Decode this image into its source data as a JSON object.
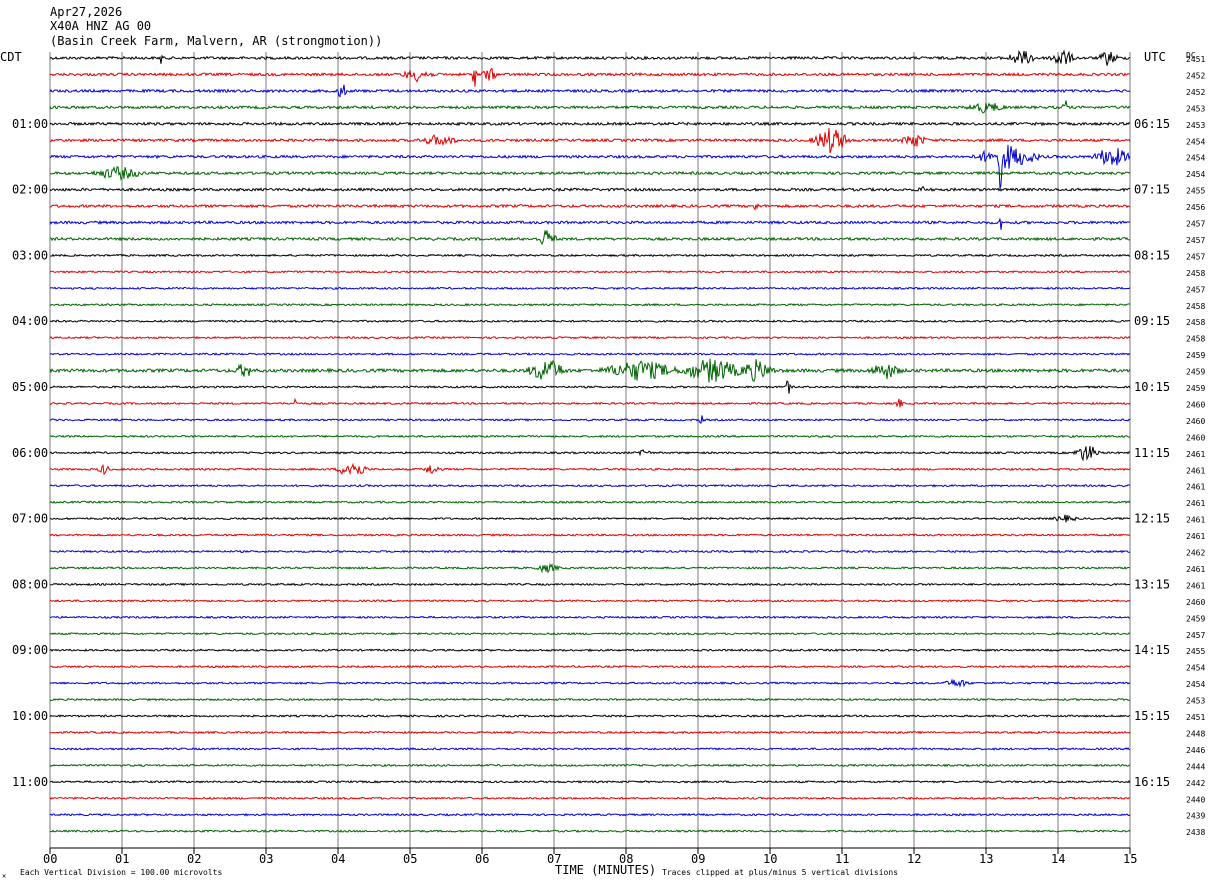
{
  "header": {
    "date": "Apr27,2026",
    "station": "X40A HNZ AG 00",
    "location": "(Basin Creek Farm, Malvern, AR (strongmotion))"
  },
  "labels": {
    "left_zone": "CDT",
    "right_zone": "UTC",
    "dc": "DC",
    "corner": "✕"
  },
  "footer": {
    "xlabel": "TIME (MINUTES)",
    "scale_note": "Each Vertical Division = 100.00 microvolts",
    "clip_note": "Traces clipped at plus/minus 5 vertical divisions"
  },
  "chart_data": {
    "type": "line",
    "xlim": [
      0,
      15
    ],
    "x_ticks": [
      "00",
      "01",
      "02",
      "03",
      "04",
      "05",
      "06",
      "07",
      "08",
      "09",
      "10",
      "11",
      "12",
      "13",
      "14",
      "15"
    ],
    "trace_count": 48,
    "trace_colors": [
      "#000000",
      "#e00000",
      "#0000d0",
      "#006400"
    ],
    "left_time_labels": [
      {
        "trace": 4,
        "label": "01:00"
      },
      {
        "trace": 8,
        "label": "02:00"
      },
      {
        "trace": 12,
        "label": "03:00"
      },
      {
        "trace": 16,
        "label": "04:00"
      },
      {
        "trace": 20,
        "label": "05:00"
      },
      {
        "trace": 24,
        "label": "06:00"
      },
      {
        "trace": 28,
        "label": "07:00"
      },
      {
        "trace": 32,
        "label": "08:00"
      },
      {
        "trace": 36,
        "label": "09:00"
      },
      {
        "trace": 40,
        "label": "10:00"
      },
      {
        "trace": 44,
        "label": "11:00"
      }
    ],
    "right_time_labels": [
      {
        "trace": 4,
        "label": "06:15"
      },
      {
        "trace": 8,
        "label": "07:15"
      },
      {
        "trace": 12,
        "label": "08:15"
      },
      {
        "trace": 16,
        "label": "09:15"
      },
      {
        "trace": 20,
        "label": "10:15"
      },
      {
        "trace": 24,
        "label": "11:15"
      },
      {
        "trace": 28,
        "label": "12:15"
      },
      {
        "trace": 32,
        "label": "13:15"
      },
      {
        "trace": 36,
        "label": "14:15"
      },
      {
        "trace": 40,
        "label": "15:15"
      },
      {
        "trace": 44,
        "label": "16:15"
      }
    ],
    "dc_values": [
      2451,
      2452,
      2452,
      2453,
      2453,
      2454,
      2454,
      2454,
      2455,
      2456,
      2457,
      2457,
      2457,
      2458,
      2457,
      2458,
      2458,
      2458,
      2459,
      2459,
      2459,
      2460,
      2460,
      2460,
      2461,
      2461,
      2461,
      2461,
      2461,
      2461,
      2462,
      2461,
      2461,
      2460,
      2459,
      2457,
      2455,
      2454,
      2454,
      2453,
      2451,
      2448,
      2446,
      2444,
      2442,
      2440,
      2439,
      2438
    ],
    "events": [
      {
        "trace": 0,
        "minute": 1.55,
        "amp": 14,
        "width": 0.02
      },
      {
        "trace": 0,
        "minute": 13.5,
        "amp": 7,
        "width": 0.25
      },
      {
        "trace": 0,
        "minute": 14.05,
        "amp": 9,
        "width": 0.2
      },
      {
        "trace": 0,
        "minute": 14.7,
        "amp": 8,
        "width": 0.15
      },
      {
        "trace": 1,
        "minute": 5.1,
        "amp": 6,
        "width": 0.25
      },
      {
        "trace": 1,
        "minute": 5.9,
        "amp": 13,
        "width": 0.05
      },
      {
        "trace": 1,
        "minute": 6.1,
        "amp": 7,
        "width": 0.12
      },
      {
        "trace": 2,
        "minute": 4.05,
        "amp": 9,
        "width": 0.08
      },
      {
        "trace": 3,
        "minute": 14.1,
        "amp": 8,
        "width": 0.05
      },
      {
        "trace": 3,
        "minute": 13.0,
        "amp": 5,
        "width": 0.3
      },
      {
        "trace": 5,
        "minute": 5.4,
        "amp": 5,
        "width": 0.3
      },
      {
        "trace": 5,
        "minute": 10.85,
        "amp": 13,
        "width": 0.3
      },
      {
        "trace": 5,
        "minute": 12.0,
        "amp": 7,
        "width": 0.2
      },
      {
        "trace": 6,
        "minute": 13.3,
        "amp": 12,
        "width": 0.5
      },
      {
        "trace": 6,
        "minute": 14.75,
        "amp": 10,
        "width": 0.3
      },
      {
        "trace": 6,
        "minute": 13.2,
        "amp": 38,
        "width": 0.03
      },
      {
        "trace": 7,
        "minute": 0.95,
        "amp": 6,
        "width": 0.4
      },
      {
        "trace": 8,
        "minute": 12.1,
        "amp": 4,
        "width": 0.05
      },
      {
        "trace": 9,
        "minute": 9.8,
        "amp": 5,
        "width": 0.04
      },
      {
        "trace": 10,
        "minute": 13.2,
        "amp": 16,
        "width": 0.02
      },
      {
        "trace": 11,
        "minute": 6.9,
        "amp": 10,
        "width": 0.15
      },
      {
        "trace": 19,
        "minute": 2.7,
        "amp": 7,
        "width": 0.15
      },
      {
        "trace": 19,
        "minute": 6.9,
        "amp": 12,
        "width": 0.3
      },
      {
        "trace": 19,
        "minute": 8.2,
        "amp": 10,
        "width": 0.6
      },
      {
        "trace": 19,
        "minute": 9.2,
        "amp": 12,
        "width": 0.5
      },
      {
        "trace": 19,
        "minute": 9.8,
        "amp": 10,
        "width": 0.3
      },
      {
        "trace": 19,
        "minute": 11.6,
        "amp": 8,
        "width": 0.25
      },
      {
        "trace": 20,
        "minute": 10.25,
        "amp": 8,
        "width": 0.05
      },
      {
        "trace": 21,
        "minute": 3.4,
        "amp": 6,
        "width": 0.03
      },
      {
        "trace": 21,
        "minute": 11.8,
        "amp": 6,
        "width": 0.05
      },
      {
        "trace": 22,
        "minute": 9.05,
        "amp": 4,
        "width": 0.05
      },
      {
        "trace": 24,
        "minute": 8.25,
        "amp": 5,
        "width": 0.1
      },
      {
        "trace": 24,
        "minute": 14.4,
        "amp": 9,
        "width": 0.2
      },
      {
        "trace": 25,
        "minute": 0.75,
        "amp": 5,
        "width": 0.1
      },
      {
        "trace": 25,
        "minute": 4.2,
        "amp": 9,
        "width": 0.25
      },
      {
        "trace": 25,
        "minute": 5.3,
        "amp": 5,
        "width": 0.15
      },
      {
        "trace": 28,
        "minute": 14.1,
        "amp": 3,
        "width": 0.2
      },
      {
        "trace": 31,
        "minute": 6.9,
        "amp": 4,
        "width": 0.2
      },
      {
        "trace": 38,
        "minute": 12.6,
        "amp": 4,
        "width": 0.2
      }
    ]
  }
}
